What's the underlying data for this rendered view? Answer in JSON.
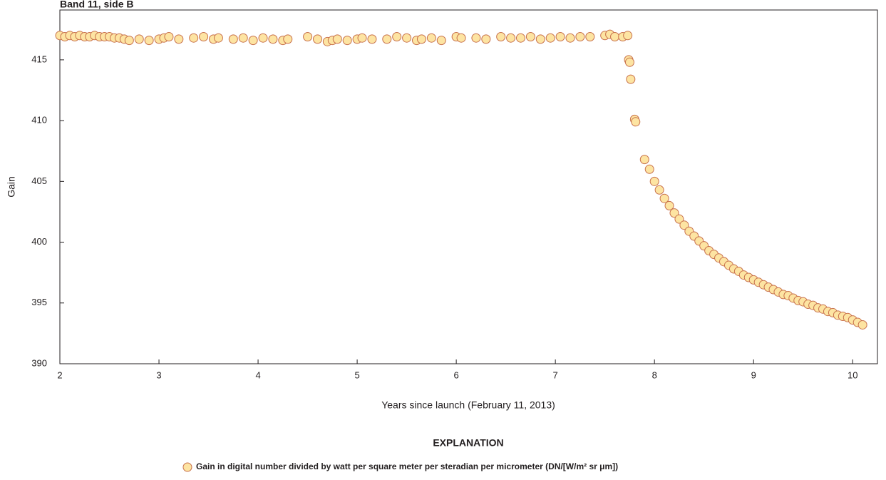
{
  "chart_data": {
    "type": "scatter",
    "title": "Band 11, side B",
    "xlabel": "Years since launch (February 11, 2013)",
    "ylabel": "Gain",
    "legend_title": "EXPLANATION",
    "legend_position": "bottom",
    "xlim": [
      2,
      10.25
    ],
    "ylim": [
      390,
      419.1
    ],
    "xticks": [
      2,
      3,
      4,
      5,
      6,
      7,
      8,
      9,
      10
    ],
    "yticks": [
      390,
      395,
      400,
      405,
      410,
      415
    ],
    "x": [
      2.0,
      2.05,
      2.1,
      2.15,
      2.2,
      2.25,
      2.3,
      2.35,
      2.4,
      2.45,
      2.5,
      2.55,
      2.6,
      2.65,
      2.7,
      2.8,
      2.9,
      3.0,
      3.05,
      3.1,
      3.2,
      3.35,
      3.45,
      3.55,
      3.6,
      3.75,
      3.85,
      3.95,
      4.05,
      4.15,
      4.25,
      4.3,
      4.5,
      4.6,
      4.7,
      4.75,
      4.8,
      4.9,
      5.0,
      5.05,
      5.15,
      5.3,
      5.4,
      5.5,
      5.6,
      5.65,
      5.75,
      5.85,
      6.0,
      6.05,
      6.2,
      6.3,
      6.45,
      6.55,
      6.65,
      6.75,
      6.85,
      6.95,
      7.05,
      7.15,
      7.25,
      7.35,
      7.5,
      7.55,
      7.6,
      7.68,
      7.73,
      7.74,
      7.75,
      7.76,
      7.8,
      7.81,
      7.9,
      7.95,
      8.0,
      8.05,
      8.1,
      8.15,
      8.2,
      8.25,
      8.3,
      8.35,
      8.4,
      8.45,
      8.5,
      8.55,
      8.6,
      8.65,
      8.7,
      8.75,
      8.8,
      8.85,
      8.9,
      8.95,
      9.0,
      9.05,
      9.1,
      9.15,
      9.2,
      9.25,
      9.3,
      9.35,
      9.4,
      9.45,
      9.5,
      9.55,
      9.6,
      9.65,
      9.7,
      9.75,
      9.8,
      9.85,
      9.9,
      9.95,
      10.0,
      10.05,
      10.1
    ],
    "series": [
      {
        "name": "Gain in digital number divided by watt per square meter per steradian per micrometer (DN/[W/m² sr μm])",
        "color": "#fde4a2",
        "edgecolor": "#c8714c",
        "values": [
          417.0,
          416.9,
          417.0,
          416.9,
          417.0,
          416.9,
          416.9,
          417.0,
          416.9,
          416.9,
          416.9,
          416.8,
          416.8,
          416.7,
          416.6,
          416.7,
          416.6,
          416.7,
          416.8,
          416.9,
          416.7,
          416.8,
          416.9,
          416.7,
          416.8,
          416.7,
          416.8,
          416.6,
          416.8,
          416.7,
          416.6,
          416.7,
          416.9,
          416.7,
          416.5,
          416.6,
          416.7,
          416.6,
          416.7,
          416.8,
          416.7,
          416.7,
          416.9,
          416.8,
          416.6,
          416.7,
          416.8,
          416.6,
          416.9,
          416.8,
          416.8,
          416.7,
          416.9,
          416.8,
          416.8,
          416.9,
          416.7,
          416.8,
          416.9,
          416.8,
          416.9,
          416.9,
          417.0,
          417.1,
          416.9,
          416.9,
          417.0,
          415.0,
          414.8,
          413.4,
          410.1,
          409.9,
          406.8,
          406.0,
          405.0,
          404.3,
          403.6,
          403.0,
          402.4,
          401.9,
          401.4,
          400.9,
          400.5,
          400.1,
          399.7,
          399.3,
          399.0,
          398.7,
          398.4,
          398.1,
          397.8,
          397.6,
          397.3,
          397.1,
          396.9,
          396.7,
          396.5,
          396.3,
          396.1,
          395.9,
          395.7,
          395.6,
          395.4,
          395.2,
          395.1,
          394.9,
          394.8,
          394.6,
          394.5,
          394.3,
          394.2,
          394.0,
          393.9,
          393.8,
          393.6,
          393.4,
          393.2
        ]
      }
    ]
  }
}
